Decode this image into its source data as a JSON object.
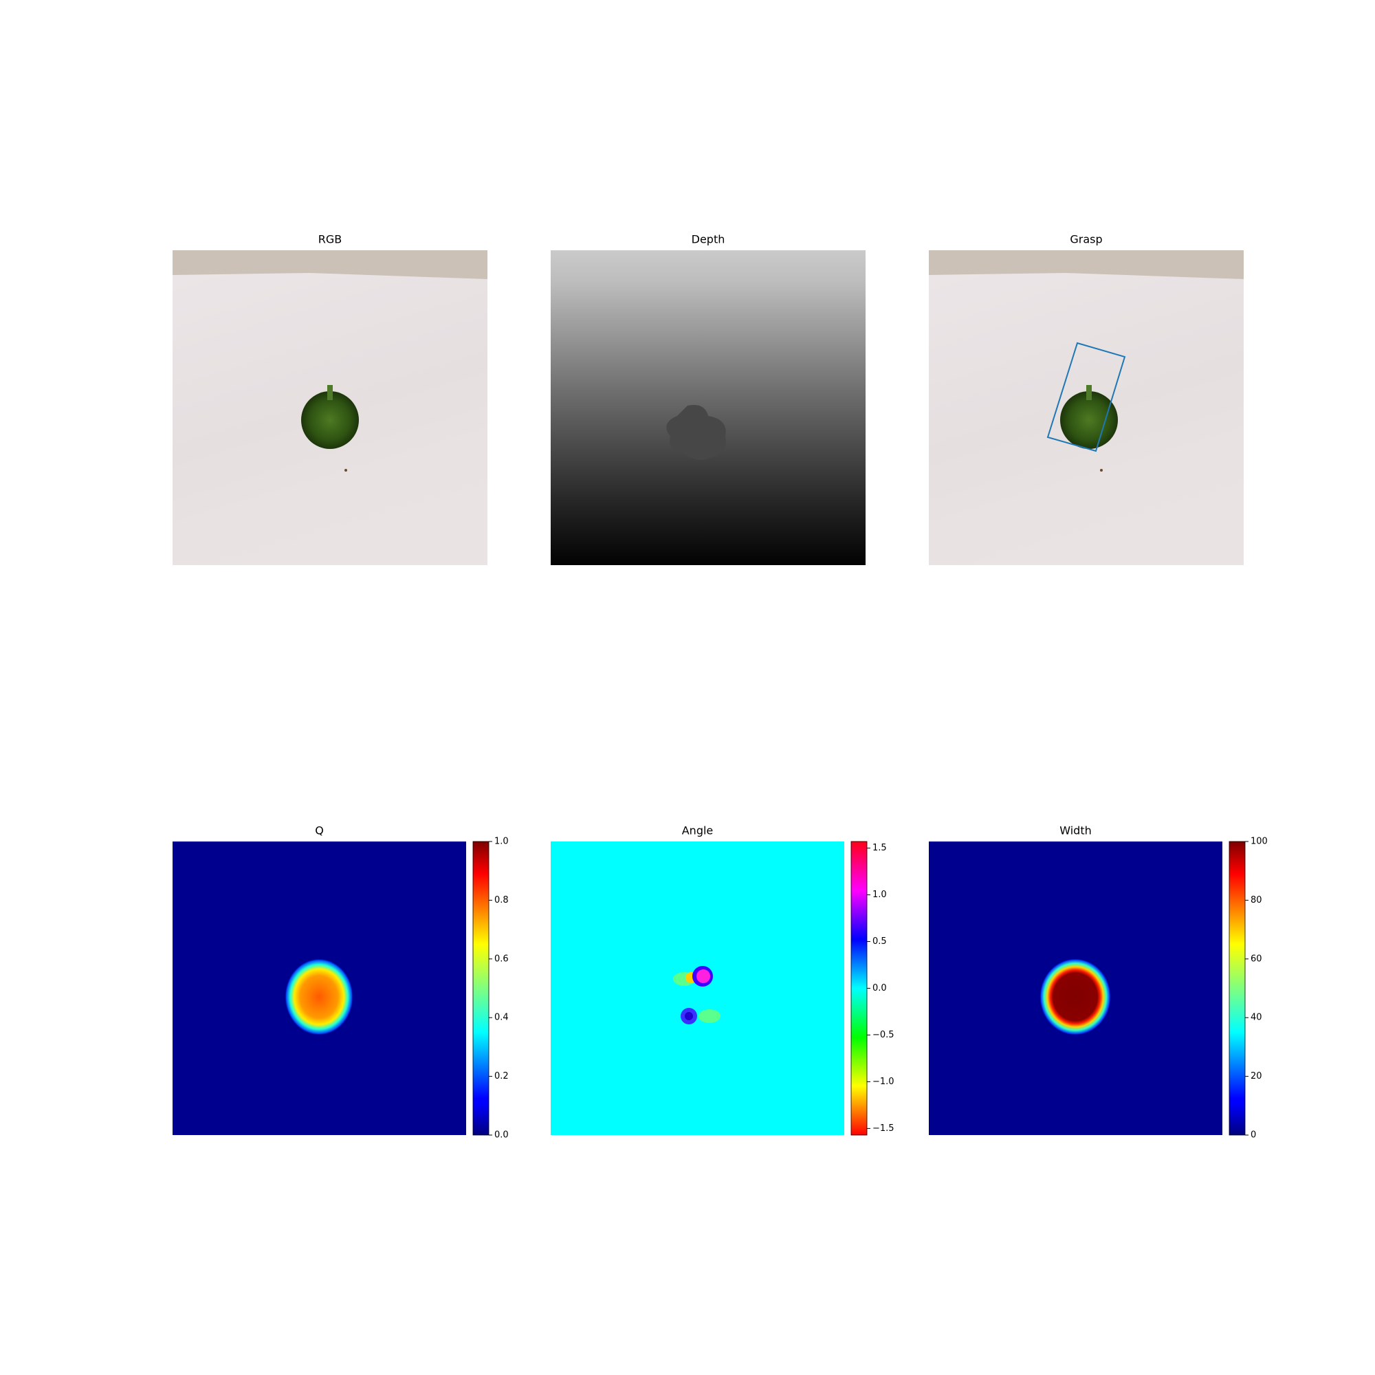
{
  "chart_data": [
    {
      "type": "image",
      "title": "RGB"
    },
    {
      "type": "image",
      "title": "Depth"
    },
    {
      "type": "image",
      "title": "Grasp"
    },
    {
      "type": "heatmap",
      "title": "Q",
      "colormap": "jet",
      "clim": [
        0,
        1
      ],
      "cticks": [
        {
          "value": 0,
          "label": "0.0"
        },
        {
          "value": 0.2,
          "label": "0.2"
        },
        {
          "value": 0.4,
          "label": "0.4"
        },
        {
          "value": 0.6,
          "label": "0.6"
        },
        {
          "value": 0.8,
          "label": "0.8"
        },
        {
          "value": 1,
          "label": "1.0"
        }
      ]
    },
    {
      "type": "heatmap",
      "title": "Angle",
      "colormap": "hsv",
      "clim": [
        -1.5708,
        1.5708
      ],
      "cticks": [
        {
          "value": -1.5,
          "label": "−1.5"
        },
        {
          "value": -1,
          "label": "−1.0"
        },
        {
          "value": -0.5,
          "label": "−0.5"
        },
        {
          "value": 0,
          "label": "0.0"
        },
        {
          "value": 0.5,
          "label": "0.5"
        },
        {
          "value": 1,
          "label": "1.0"
        },
        {
          "value": 1.5,
          "label": "1.5"
        }
      ]
    },
    {
      "type": "heatmap",
      "title": "Width",
      "colormap": "jet",
      "clim": [
        0,
        100
      ],
      "cticks": [
        0,
        20,
        40,
        60,
        80,
        100
      ]
    }
  ]
}
